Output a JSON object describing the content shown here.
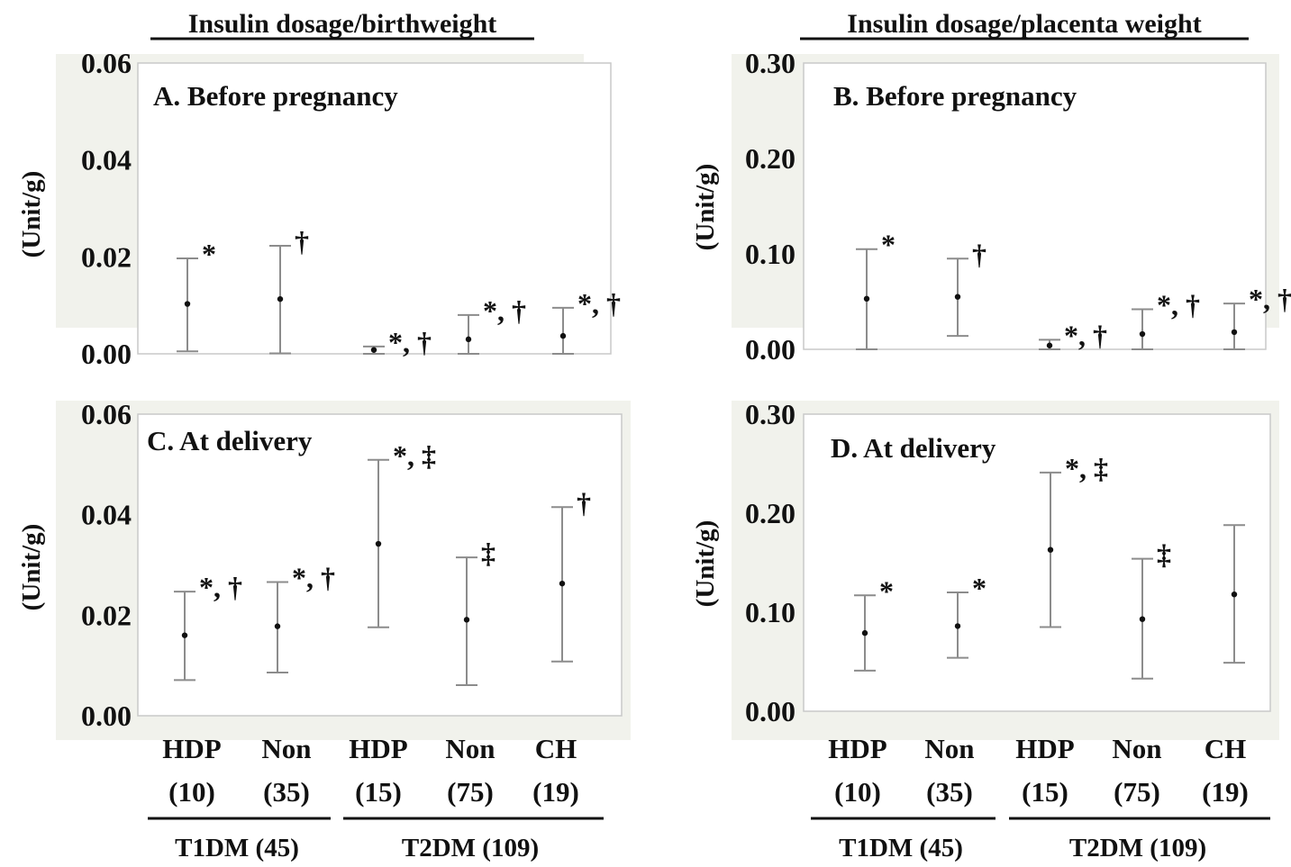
{
  "column_titles": [
    "Insulin dosage/birthweight",
    "Insulin dosage/placenta weight"
  ],
  "categories": [
    {
      "name": "HDP",
      "n": "(10)"
    },
    {
      "name": "Non",
      "n": "(35)"
    },
    {
      "name": "HDP",
      "n": "(15)"
    },
    {
      "name": "Non",
      "n": "(75)"
    },
    {
      "name": "CH",
      "n": "(19)"
    }
  ],
  "groups": [
    {
      "label": "T1DM (45)",
      "span": [
        0,
        1
      ]
    },
    {
      "label": "T2DM (109)",
      "span": [
        2,
        4
      ]
    }
  ],
  "colors": {
    "panel_bg": "#f1f2ec",
    "plot_bg": "#ffffff",
    "bars": "#8c8c8c",
    "text": "#111111"
  },
  "chart_data": [
    {
      "type": "scatter",
      "title": "A. Before pregnancy",
      "ylabel": "(Unit/g)",
      "ylim": [
        0,
        0.06
      ],
      "yticks": [
        "0.00",
        "0.02",
        "0.04",
        "0.06"
      ],
      "yticks_values": [
        0,
        0.02,
        0.04,
        0.06
      ],
      "categories": [
        "HDP (10)",
        "Non (35)",
        "HDP (15)",
        "Non (75)",
        "CH (19)"
      ],
      "series": [
        {
          "median": [
            0.0103,
            0.0113,
            0.0008,
            0.003,
            0.0037
          ],
          "lower": [
            0.0005,
            0.0001,
            0.0,
            0.0,
            0.0
          ],
          "upper": [
            0.0197,
            0.0223,
            0.0015,
            0.008,
            0.0095
          ]
        }
      ],
      "significance": [
        "*",
        "†",
        "*, †",
        "*, †",
        "*, †"
      ]
    },
    {
      "type": "scatter",
      "title": "B. Before pregnancy",
      "ylabel": "(Unit/g)",
      "ylim": [
        0,
        0.3
      ],
      "yticks": [
        "0.00",
        "0.10",
        "0.20",
        "0.30"
      ],
      "yticks_values": [
        0,
        0.1,
        0.2,
        0.3
      ],
      "categories": [
        "HDP (10)",
        "Non (35)",
        "HDP (15)",
        "Non (75)",
        "CH (19)"
      ],
      "series": [
        {
          "median": [
            0.053,
            0.055,
            0.004,
            0.016,
            0.018
          ],
          "lower": [
            0.0,
            0.014,
            0.0,
            0.0,
            0.0
          ],
          "upper": [
            0.105,
            0.095,
            0.01,
            0.042,
            0.048
          ]
        }
      ],
      "significance": [
        "*",
        "†",
        "*, †",
        "*, †",
        "*, †"
      ]
    },
    {
      "type": "scatter",
      "title": "C. At delivery",
      "ylabel": "(Unit/g)",
      "ylim": [
        0,
        0.06
      ],
      "yticks": [
        "0.00",
        "0.02",
        "0.04",
        "0.06"
      ],
      "yticks_values": [
        0,
        0.02,
        0.04,
        0.06
      ],
      "categories": [
        "HDP (10)",
        "Non (35)",
        "HDP (15)",
        "Non (75)",
        "CH (19)"
      ],
      "series": [
        {
          "median": [
            0.016,
            0.0178,
            0.0342,
            0.0191,
            0.0263
          ],
          "lower": [
            0.0071,
            0.0086,
            0.0176,
            0.0061,
            0.0108
          ],
          "upper": [
            0.0247,
            0.0266,
            0.0509,
            0.0315,
            0.0415
          ]
        }
      ],
      "significance": [
        "*, †",
        "*, †",
        "*, ‡",
        "‡",
        "†"
      ]
    },
    {
      "type": "scatter",
      "title": "D. At delivery",
      "ylabel": "(Unit/g)",
      "ylim": [
        0,
        0.3
      ],
      "yticks": [
        "0.00",
        "0.10",
        "0.20",
        "0.30"
      ],
      "yticks_values": [
        0,
        0.1,
        0.2,
        0.3
      ],
      "categories": [
        "HDP (10)",
        "Non (35)",
        "HDP (15)",
        "Non (75)",
        "CH (19)"
      ],
      "series": [
        {
          "median": [
            0.079,
            0.086,
            0.163,
            0.093,
            0.118
          ],
          "lower": [
            0.041,
            0.054,
            0.085,
            0.033,
            0.049
          ],
          "upper": [
            0.117,
            0.12,
            0.241,
            0.154,
            0.188
          ]
        }
      ],
      "significance": [
        "*",
        "*",
        "*, ‡",
        "‡",
        ""
      ]
    }
  ]
}
